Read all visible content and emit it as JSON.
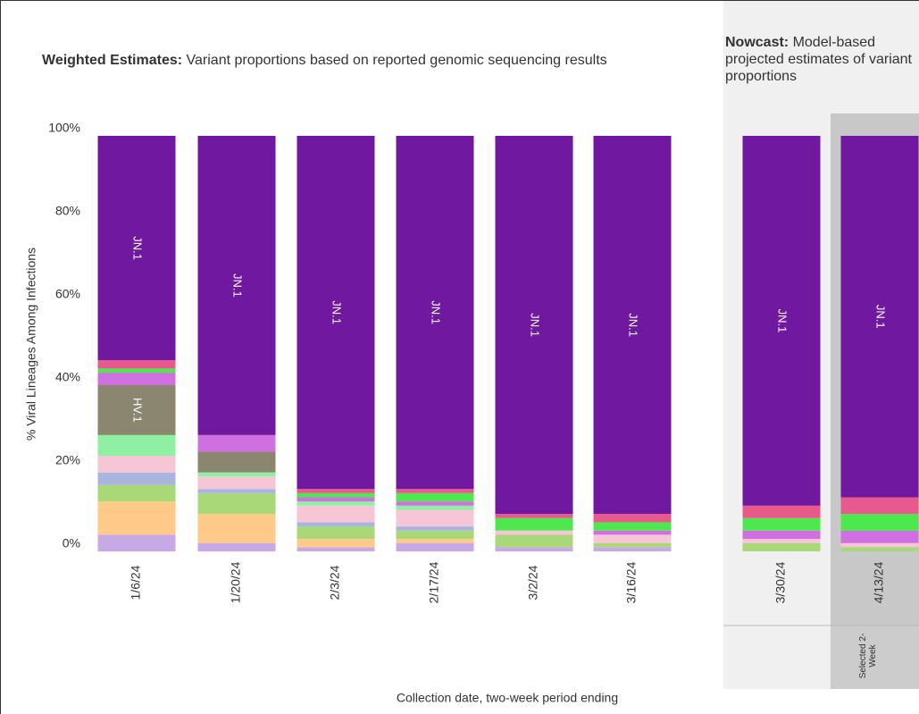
{
  "chart_data": {
    "type": "stacked_bar",
    "title_bold": "Weighted Estimates:",
    "title": "Variant proportions based on reported genomic sequencing results",
    "nowcast_title_bold": "Nowcast:",
    "nowcast_title": "Model-based projected estimates of variant proportions",
    "x_label": "Collection date, two-week period ending",
    "y_label": "% Viral Lineages Among Infections",
    "selected_label": "Selected 2-Week",
    "categories": [
      "1/6/24",
      "1/20/24",
      "2/3/24",
      "2/17/24",
      "3/2/24",
      "3/16/24",
      "3/30/24",
      "4/13/24"
    ],
    "ylim": [
      0,
      100
    ],
    "yticks": [
      {
        "value": 0,
        "label": "0%"
      },
      {
        "value": 20,
        "label": "20%"
      },
      {
        "value": 40,
        "label": "40%"
      },
      {
        "value": 60,
        "label": "60%"
      },
      {
        "value": 80,
        "label": "80%"
      },
      {
        "value": 100,
        "label": "100%"
      }
    ],
    "series": [
      {
        "color": "#c9a8e8",
        "values": [
          4,
          2,
          1,
          2,
          1,
          1,
          0,
          0
        ]
      },
      {
        "color": "#ffc98a",
        "values": [
          8,
          7,
          2,
          1,
          0,
          0,
          0,
          0
        ]
      },
      {
        "color": "#a8d878",
        "values": [
          4,
          5,
          3,
          2,
          3,
          1,
          2,
          1
        ]
      },
      {
        "color": "#a9b4e0",
        "values": [
          3,
          1,
          1,
          1,
          0,
          0,
          0,
          0
        ]
      },
      {
        "color": "#f7c6d6",
        "values": [
          4,
          3,
          4,
          4,
          1,
          2,
          1,
          1
        ]
      },
      {
        "color": "#8ef0a0",
        "values": [
          5,
          1,
          1,
          1,
          0,
          0,
          0,
          0
        ]
      },
      {
        "name": "HV.1",
        "color": "#8a8670",
        "values": [
          12,
          5,
          0,
          0,
          0,
          0,
          0,
          0
        ]
      },
      {
        "color": "#d070e0",
        "values": [
          3,
          4,
          1,
          1,
          0,
          1,
          2,
          3
        ]
      },
      {
        "color": "#4de84d",
        "values": [
          1,
          0,
          1,
          2,
          3,
          2,
          3,
          4
        ]
      },
      {
        "color": "#e85a8c",
        "values": [
          2,
          0,
          1,
          1,
          1,
          2,
          3,
          4
        ]
      },
      {
        "name": "JN.1",
        "color": "#7019a0",
        "values": [
          54,
          72,
          85,
          85,
          91,
          91,
          89,
          87
        ]
      }
    ]
  }
}
